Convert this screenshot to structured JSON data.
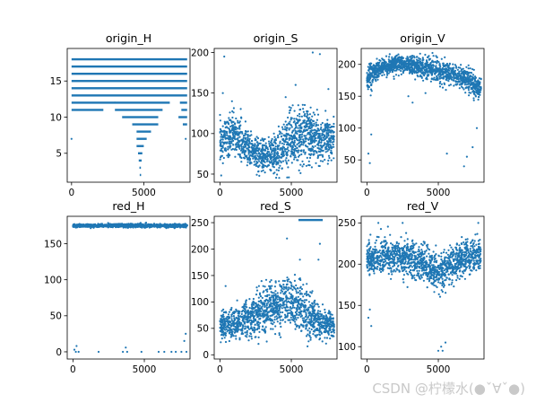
{
  "watermark": "CSDN @柠檬水(●ˇ∀ˇ●)",
  "colors": {
    "marker": "#1f77b4",
    "axis": "#000000"
  },
  "chart_data": [
    {
      "type": "scatter",
      "title": "origin_H",
      "xlim": [
        -300,
        8200
      ],
      "ylim": [
        1,
        19.5
      ],
      "xticks": [
        {
          "v": 0,
          "label": "0"
        },
        {
          "v": 5000,
          "label": "5000"
        }
      ],
      "yticks": [
        {
          "v": 5,
          "label": "5"
        },
        {
          "v": 10,
          "label": "10"
        },
        {
          "v": 15,
          "label": "15"
        }
      ],
      "levels": [
        {
          "y": 18,
          "ranges": [
            [
              0,
              8000
            ]
          ]
        },
        {
          "y": 17,
          "ranges": [
            [
              0,
              8000
            ]
          ]
        },
        {
          "y": 16,
          "ranges": [
            [
              0,
              8000
            ]
          ]
        },
        {
          "y": 15,
          "ranges": [
            [
              0,
              8000
            ]
          ]
        },
        {
          "y": 14,
          "ranges": [
            [
              0,
              8000
            ]
          ]
        },
        {
          "y": 13,
          "ranges": [
            [
              0,
              8000
            ]
          ]
        },
        {
          "y": 12,
          "ranges": [
            [
              0,
              6800
            ],
            [
              7500,
              8000
            ]
          ]
        },
        {
          "y": 11,
          "ranges": [
            [
              0,
              2200
            ],
            [
              3000,
              6300
            ],
            [
              7600,
              8000
            ]
          ]
        },
        {
          "y": 10,
          "ranges": [
            [
              3500,
              6000
            ],
            [
              7400,
              8000
            ]
          ]
        },
        {
          "y": 9,
          "ranges": [
            [
              4200,
              6000
            ],
            [
              7700,
              8000
            ]
          ]
        },
        {
          "y": 8,
          "ranges": [
            [
              4500,
              5500
            ]
          ]
        },
        {
          "y": 7,
          "ranges": [
            [
              4500,
              5200
            ]
          ]
        },
        {
          "y": 6,
          "ranges": [
            [
              4500,
              5000
            ]
          ]
        },
        {
          "y": 5,
          "ranges": [
            [
              4600,
              4900
            ]
          ]
        },
        {
          "y": 4,
          "ranges": [
            [
              4650,
              4850
            ]
          ]
        },
        {
          "y": 3,
          "ranges": [
            [
              4700,
              4800
            ]
          ]
        },
        {
          "y": 2,
          "ranges": [
            [
              4720,
              4780
            ]
          ]
        }
      ],
      "extra_points": [
        [
          0,
          7
        ],
        [
          3000,
          12
        ],
        [
          7900,
          7
        ]
      ]
    },
    {
      "type": "scatter",
      "title": "origin_S",
      "xlim": [
        -400,
        8200
      ],
      "ylim": [
        40,
        205
      ],
      "xticks": [
        {
          "v": 0,
          "label": "0"
        },
        {
          "v": 5000,
          "label": "5000"
        }
      ],
      "yticks": [
        {
          "v": 50,
          "label": "50"
        },
        {
          "v": 100,
          "label": "100"
        },
        {
          "v": 150,
          "label": "150"
        },
        {
          "v": 200,
          "label": "200"
        }
      ],
      "profile": [
        [
          0,
          90,
          22
        ],
        [
          1000,
          100,
          25
        ],
        [
          2000,
          80,
          20
        ],
        [
          3000,
          70,
          18
        ],
        [
          4000,
          75,
          22
        ],
        [
          5000,
          95,
          30
        ],
        [
          6000,
          100,
          30
        ],
        [
          7000,
          92,
          22
        ],
        [
          8000,
          95,
          22
        ]
      ],
      "outliers": [
        [
          300,
          195
        ],
        [
          6500,
          200
        ],
        [
          7000,
          198
        ],
        [
          200,
          150
        ],
        [
          5300,
          160
        ],
        [
          7600,
          155
        ],
        [
          4600,
          145
        ]
      ]
    },
    {
      "type": "scatter",
      "title": "origin_V",
      "xlim": [
        -400,
        8200
      ],
      "ylim": [
        15,
        225
      ],
      "xticks": [
        {
          "v": 0,
          "label": "0"
        },
        {
          "v": 5000,
          "label": "5000"
        }
      ],
      "yticks": [
        {
          "v": 50,
          "label": "50"
        },
        {
          "v": 100,
          "label": "100"
        },
        {
          "v": 150,
          "label": "150"
        },
        {
          "v": 200,
          "label": "200"
        }
      ],
      "profile": [
        [
          0,
          180,
          20
        ],
        [
          1000,
          195,
          12
        ],
        [
          2000,
          200,
          12
        ],
        [
          3000,
          200,
          12
        ],
        [
          4000,
          195,
          15
        ],
        [
          5000,
          190,
          15
        ],
        [
          6000,
          185,
          15
        ],
        [
          7000,
          175,
          18
        ],
        [
          8000,
          160,
          15
        ]
      ],
      "outliers": [
        [
          100,
          60
        ],
        [
          200,
          45
        ],
        [
          300,
          90
        ],
        [
          5600,
          60
        ],
        [
          6800,
          40
        ],
        [
          7000,
          55
        ],
        [
          7400,
          70
        ],
        [
          7700,
          100
        ],
        [
          2900,
          150
        ],
        [
          3200,
          140
        ],
        [
          4100,
          155
        ]
      ]
    },
    {
      "type": "scatter",
      "title": "red_H",
      "xlim": [
        -400,
        8200
      ],
      "ylim": [
        -10,
        188
      ],
      "xticks": [
        {
          "v": 0,
          "label": "0"
        },
        {
          "v": 5000,
          "label": "5000"
        }
      ],
      "yticks": [
        {
          "v": 0,
          "label": "0"
        },
        {
          "v": 50,
          "label": "50"
        },
        {
          "v": 100,
          "label": "100"
        },
        {
          "v": 150,
          "label": "150"
        }
      ],
      "profile": [
        [
          0,
          175,
          2
        ],
        [
          8000,
          175,
          2
        ]
      ],
      "outliers": [
        [
          100,
          3
        ],
        [
          200,
          0
        ],
        [
          250,
          8
        ],
        [
          400,
          0
        ],
        [
          1800,
          0
        ],
        [
          3500,
          0
        ],
        [
          3700,
          6
        ],
        [
          3800,
          0
        ],
        [
          4800,
          0
        ],
        [
          6000,
          0
        ],
        [
          6400,
          0
        ],
        [
          6900,
          0
        ],
        [
          7200,
          0
        ],
        [
          7600,
          0
        ],
        [
          7800,
          15
        ],
        [
          7900,
          25
        ],
        [
          7950,
          0
        ]
      ]
    },
    {
      "type": "scatter",
      "title": "red_S",
      "xlim": [
        -400,
        8200
      ],
      "ylim": [
        -8,
        262
      ],
      "xticks": [
        {
          "v": 0,
          "label": "0"
        },
        {
          "v": 5000,
          "label": "5000"
        }
      ],
      "yticks": [
        {
          "v": 0,
          "label": "0"
        },
        {
          "v": 50,
          "label": "50"
        },
        {
          "v": 100,
          "label": "100"
        },
        {
          "v": 150,
          "label": "150"
        },
        {
          "v": 200,
          "label": "200"
        },
        {
          "v": 250,
          "label": "250"
        }
      ],
      "profile": [
        [
          0,
          55,
          22
        ],
        [
          1000,
          60,
          25
        ],
        [
          2000,
          70,
          32
        ],
        [
          3000,
          80,
          40
        ],
        [
          4000,
          95,
          42
        ],
        [
          5000,
          100,
          40
        ],
        [
          6000,
          80,
          40
        ],
        [
          7000,
          60,
          25
        ],
        [
          8000,
          55,
          20
        ]
      ],
      "bands": [
        {
          "y": 255,
          "ranges": [
            [
              5500,
              7200
            ]
          ]
        }
      ],
      "outliers": [
        [
          400,
          130
        ],
        [
          6900,
          180
        ],
        [
          7000,
          210
        ],
        [
          4700,
          220
        ],
        [
          5600,
          180
        ]
      ]
    },
    {
      "type": "scatter",
      "title": "red_V",
      "xlim": [
        -400,
        8200
      ],
      "ylim": [
        85,
        258
      ],
      "xticks": [
        {
          "v": 0,
          "label": "0"
        },
        {
          "v": 5000,
          "label": "5000"
        }
      ],
      "yticks": [
        {
          "v": 100,
          "label": "100"
        },
        {
          "v": 150,
          "label": "150"
        },
        {
          "v": 200,
          "label": "200"
        },
        {
          "v": 250,
          "label": "250"
        }
      ],
      "profile": [
        [
          0,
          205,
          18
        ],
        [
          1000,
          210,
          18
        ],
        [
          2000,
          210,
          18
        ],
        [
          3000,
          205,
          18
        ],
        [
          4000,
          200,
          20
        ],
        [
          5000,
          190,
          20
        ],
        [
          6000,
          200,
          20
        ],
        [
          7000,
          210,
          20
        ],
        [
          8000,
          210,
          18
        ]
      ],
      "outliers": [
        [
          100,
          135
        ],
        [
          200,
          145
        ],
        [
          300,
          125
        ],
        [
          800,
          250
        ],
        [
          2500,
          250
        ],
        [
          5000,
          95
        ],
        [
          5200,
          100
        ],
        [
          5300,
          95
        ],
        [
          5500,
          105
        ],
        [
          7800,
          250
        ]
      ]
    }
  ]
}
